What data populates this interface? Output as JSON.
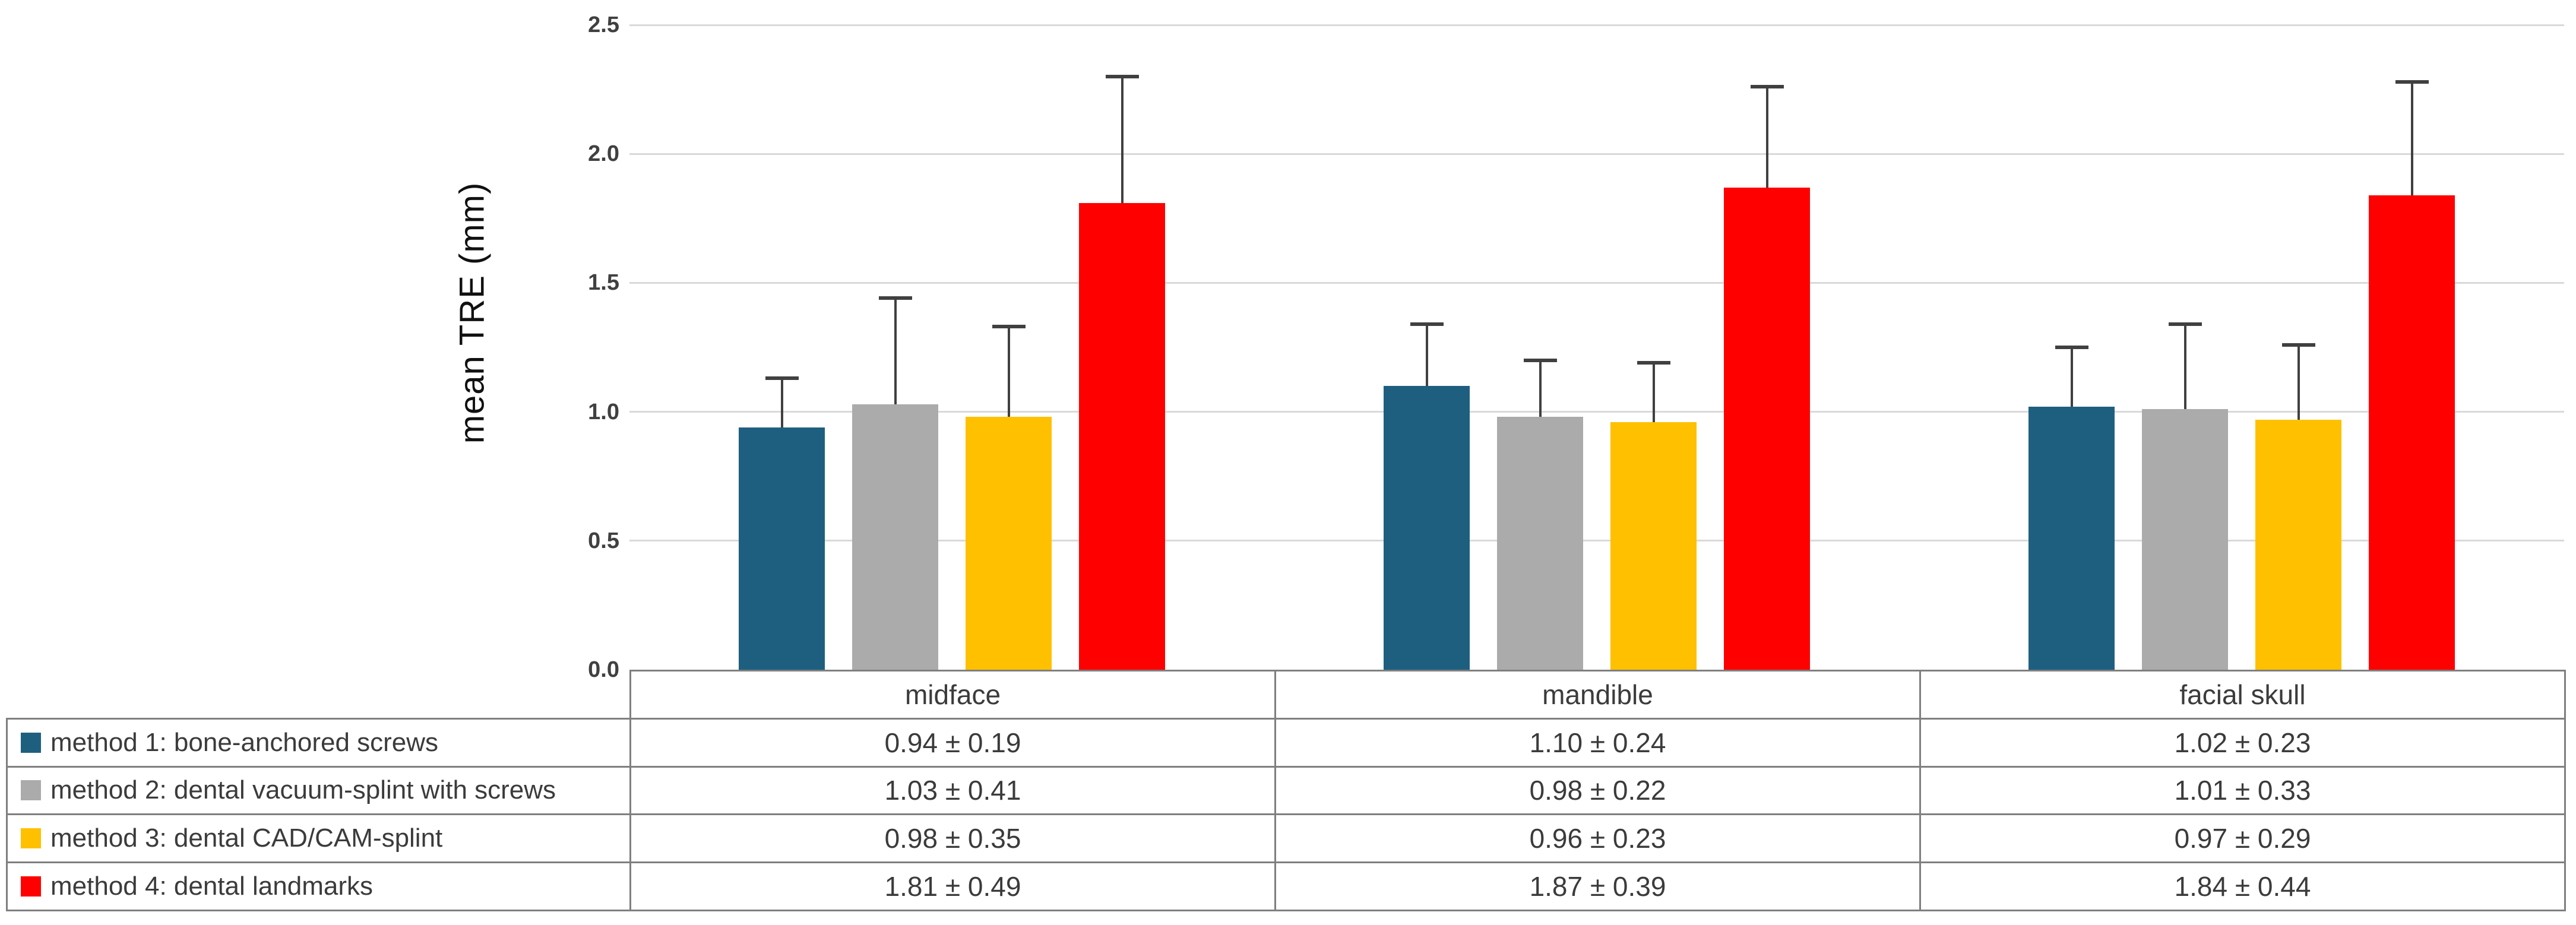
{
  "figure": {
    "y_axis_title": "mean TRE (mm)"
  },
  "chart_data": {
    "type": "bar",
    "title": "",
    "xlabel": "",
    "ylabel": "mean TRE (mm)",
    "ylim": [
      0,
      2.5
    ],
    "ytick_step": 0.5,
    "yticks": [
      "0.0",
      "0.5",
      "1.0",
      "1.5",
      "2.0",
      "2.5"
    ],
    "grid": true,
    "legend_position": "left column of data table",
    "error_bars": "plus direction only",
    "categories": [
      "midface",
      "mandible",
      "facial skull"
    ],
    "series": [
      {
        "name": "method 1: bone-anchored screws",
        "color": "#1E5F80",
        "values": [
          0.94,
          1.1,
          1.02
        ],
        "errors": [
          0.19,
          0.24,
          0.23
        ],
        "display": [
          "0.94 ± 0.19",
          "1.10 ± 0.24",
          "1.02 ± 0.23"
        ]
      },
      {
        "name": "method 2: dental vacuum-splint with screws",
        "color": "#ABABAB",
        "values": [
          1.03,
          0.98,
          1.01
        ],
        "errors": [
          0.41,
          0.22,
          0.33
        ],
        "display": [
          "1.03 ± 0.41",
          "0.98 ± 0.22",
          "1.01 ± 0.33"
        ]
      },
      {
        "name": "method 3: dental CAD/CAM-splint",
        "color": "#FFC000",
        "values": [
          0.98,
          0.96,
          0.97
        ],
        "errors": [
          0.35,
          0.23,
          0.29
        ],
        "display": [
          "0.98 ± 0.35",
          "0.96 ± 0.23",
          "0.97 ± 0.29"
        ]
      },
      {
        "name": "method 4: dental landmarks",
        "color": "#FF0000",
        "values": [
          1.81,
          1.87,
          1.84
        ],
        "errors": [
          0.49,
          0.39,
          0.44
        ],
        "display": [
          "1.81 ± 0.49",
          "1.87 ± 0.39",
          "1.84 ± 0.44"
        ]
      }
    ]
  }
}
